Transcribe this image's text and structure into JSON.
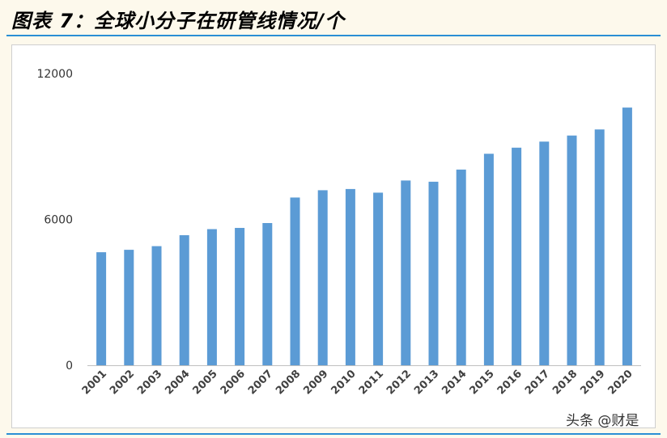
{
  "title": "图表 7：全球小分子在研管线情况/个",
  "watermark": "头条 @财是",
  "colors": {
    "bar": "#5b9bd5",
    "rule": "#2a8fd4",
    "background": "#fdf9ec"
  },
  "chart_data": {
    "type": "bar",
    "title": "",
    "xlabel": "",
    "ylabel": "",
    "ylim": [
      0,
      12000
    ],
    "yticks": [
      "0",
      "6000",
      "12000"
    ],
    "grid": false,
    "categories": [
      "2001",
      "2002",
      "2003",
      "2004",
      "2005",
      "2006",
      "2007",
      "2008",
      "2009",
      "2010",
      "2011",
      "2012",
      "2013",
      "2014",
      "2015",
      "2016",
      "2017",
      "2018",
      "2019",
      "2020"
    ],
    "series": [
      {
        "values": [
          4650,
          4750,
          4900,
          5350,
          5600,
          5650,
          5850,
          6900,
          7200,
          7250,
          7100,
          7600,
          7550,
          8050,
          8700,
          8950,
          9200,
          9450,
          9700,
          10600
        ]
      }
    ]
  }
}
